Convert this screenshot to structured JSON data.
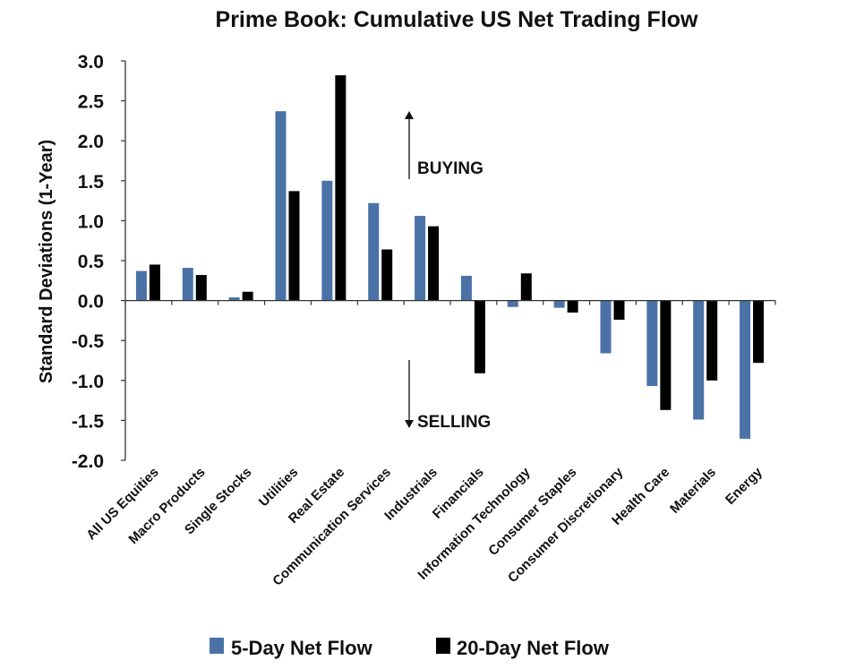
{
  "chart_data": {
    "type": "bar",
    "title": "Prime Book: Cumulative US Net Trading Flow",
    "xlabel": "",
    "ylabel": "Standard Deviations (1-Year)",
    "ylim": [
      -2.0,
      3.0
    ],
    "yticks": [
      "3.0",
      "2.5",
      "2.0",
      "1.5",
      "1.0",
      "0.5",
      "0.0",
      "-0.5",
      "-1.0",
      "-1.5",
      "-2.0"
    ],
    "grid": false,
    "legend": "bottom",
    "categories": [
      "All US Equities",
      "Macro Products",
      "Single Stocks",
      "Utilities",
      "Real Estate",
      "Communication Services",
      "Industrials",
      "Financials",
      "Information Technology",
      "Consumer Staples",
      "Consumer Discretionary",
      "Health Care",
      "Materials",
      "Energy"
    ],
    "series": [
      {
        "name": "5-Day Net Flow",
        "color": "#4a72a6",
        "values": [
          0.37,
          0.41,
          0.04,
          2.37,
          1.5,
          1.22,
          1.06,
          0.31,
          -0.08,
          -0.09,
          -0.66,
          -1.07,
          -1.49,
          -1.73
        ]
      },
      {
        "name": "20-Day Net Flow",
        "color": "#000000",
        "values": [
          0.45,
          0.32,
          0.11,
          1.37,
          2.82,
          0.64,
          0.93,
          -0.91,
          0.34,
          -0.15,
          -0.24,
          -1.37,
          -1.0,
          -0.78
        ]
      }
    ],
    "annotations": {
      "buying": "BUYING",
      "selling": "SELLING"
    }
  }
}
